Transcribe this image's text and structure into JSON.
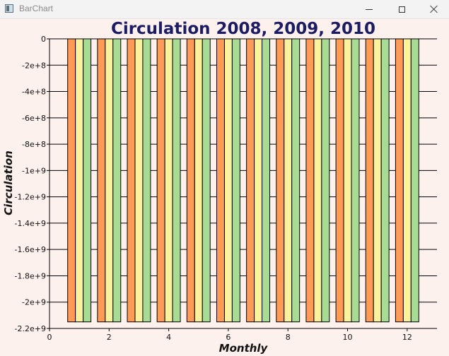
{
  "window": {
    "title": "BarChart",
    "icon": "app-window-icon"
  },
  "chart_data": {
    "type": "bar",
    "title": "Circulation 2008, 2009, 2010",
    "xlabel": "Monthly",
    "ylabel": "Circulation",
    "categories": [
      1,
      2,
      3,
      4,
      5,
      6,
      7,
      8,
      9,
      10,
      11,
      12
    ],
    "series": [
      {
        "color": "#ff9a57",
        "values": [
          -2150000000,
          -2150000000,
          -2150000000,
          -2150000000,
          -2150000000,
          -2150000000,
          -2150000000,
          -2150000000,
          -2150000000,
          -2150000000,
          -2150000000,
          -2150000000
        ]
      },
      {
        "color": "#fbf29e",
        "values": [
          -2150000000,
          -2150000000,
          -2150000000,
          -2150000000,
          -2150000000,
          -2150000000,
          -2150000000,
          -2150000000,
          -2150000000,
          -2150000000,
          -2150000000,
          -2150000000
        ]
      },
      {
        "color": "#a8dc94",
        "values": [
          -2150000000,
          -2150000000,
          -2150000000,
          -2150000000,
          -2150000000,
          -2150000000,
          -2150000000,
          -2150000000,
          -2150000000,
          -2150000000,
          -2150000000,
          -2150000000
        ]
      }
    ],
    "xlim": [
      0,
      13
    ],
    "ylim": [
      -2200000000,
      0
    ],
    "xticks": [
      0,
      2,
      4,
      6,
      8,
      10,
      12
    ],
    "xtick_labels": [
      "0",
      "2",
      "4",
      "6",
      "8",
      "10",
      "12"
    ],
    "yticks": [
      0,
      -200000000,
      -400000000,
      -600000000,
      -800000000,
      -1000000000,
      -1200000000,
      -1400000000,
      -1600000000,
      -1800000000,
      -2000000000,
      -2200000000
    ],
    "ytick_labels": [
      "0",
      "-2e+8",
      "-4e+8",
      "-6e+8",
      "-8e+8",
      "-1e+9",
      "-1.2e+9",
      "-1.4e+9",
      "-1.6e+9",
      "-1.8e+9",
      "-2e+9",
      "-2.2e+9"
    ],
    "grid": true,
    "legend": null
  }
}
